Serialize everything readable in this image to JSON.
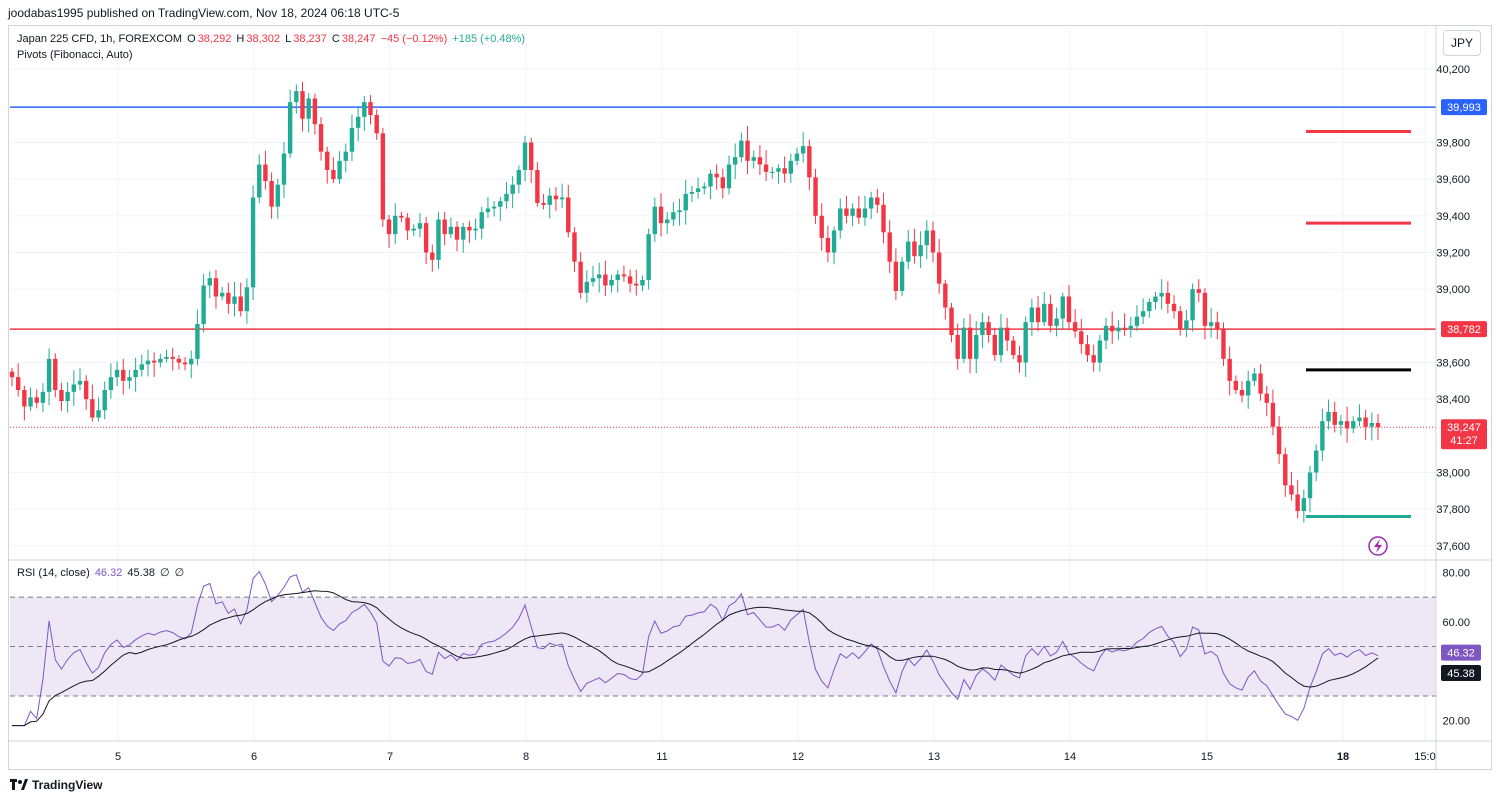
{
  "publisher": {
    "line": "joodabas1995 published on TradingView.com, Nov 18, 2024 06:18 UTC-5"
  },
  "header": {
    "symbol": "Japan 225 CFD, 1h, FOREXCOM",
    "o_label": "O",
    "o_value": "38,292",
    "h_label": "H",
    "h_value": "38,302",
    "l_label": "L",
    "l_value": "38,237",
    "c_label": "C",
    "c_value": "38,247",
    "change": "−45 (−0.12%)",
    "ext_change": "+185 (+0.48%)",
    "indicator": "Pivots (Fibonacci, Auto)",
    "currency": "JPY"
  },
  "rsi_legend": {
    "label": "RSI (14, close)",
    "rsi": "46.32",
    "ma": "45.38",
    "x1": "∅",
    "x2": "∅"
  },
  "footer": {
    "brand": "TradingView"
  },
  "colors": {
    "up": "#22ab94",
    "down": "#f23645",
    "blue_line": "#2962ff",
    "rsi": "#7e57c2",
    "rsi_band": "#ede7f6"
  },
  "chart_data": [
    {
      "type": "candlestick",
      "title": "Japan 225 CFD, 1h, FOREXCOM",
      "x_ticks": [
        "5",
        "6",
        "7",
        "8",
        "11",
        "12",
        "13",
        "14",
        "15",
        "18",
        "15:0"
      ],
      "y_ticks": [
        "40,200",
        "39,800",
        "39,600",
        "39,400",
        "39,200",
        "39,000",
        "38,600",
        "38,400",
        "38,000",
        "37,800",
        "37,600"
      ],
      "ylim": [
        37550,
        40250
      ],
      "horizontal_lines": [
        {
          "price": 39993,
          "label": "39,993",
          "color": "#2962ff"
        },
        {
          "price": 38782,
          "label": "38,782",
          "color": "#f23645"
        }
      ],
      "pivot_levels": [
        {
          "price": 39860,
          "color": "#f23645"
        },
        {
          "price": 39360,
          "color": "#f23645"
        },
        {
          "price": 38560,
          "color": "#000000"
        },
        {
          "price": 37760,
          "color": "#22ab94"
        }
      ],
      "last_price": {
        "value": "38,247",
        "countdown": "41:27"
      },
      "closes": [
        38520,
        38450,
        38360,
        38410,
        38380,
        38440,
        38620,
        38450,
        38390,
        38440,
        38480,
        38500,
        38400,
        38300,
        38340,
        38450,
        38520,
        38560,
        38500,
        38520,
        38560,
        38590,
        38610,
        38600,
        38620,
        38630,
        38620,
        38600,
        38590,
        38620,
        38810,
        39020,
        39060,
        38960,
        38980,
        38920,
        38960,
        38880,
        39010,
        39500,
        39680,
        39590,
        39450,
        39570,
        39740,
        40020,
        40080,
        39930,
        40040,
        39900,
        39750,
        39650,
        39600,
        39700,
        39750,
        39880,
        39940,
        40020,
        39950,
        39850,
        39380,
        39300,
        39400,
        39390,
        39320,
        39330,
        39360,
        39200,
        39160,
        39380,
        39300,
        39340,
        39270,
        39340,
        39320,
        39330,
        39420,
        39440,
        39450,
        39480,
        39520,
        39570,
        39650,
        39800,
        39650,
        39470,
        39460,
        39510,
        39490,
        39500,
        39310,
        39150,
        38980,
        39040,
        39060,
        39080,
        39020,
        39050,
        39080,
        39070,
        39030,
        39020,
        39050,
        39300,
        39450,
        39360,
        39380,
        39420,
        39430,
        39520,
        39530,
        39550,
        39560,
        39630,
        39610,
        39550,
        39680,
        39720,
        39810,
        39700,
        39720,
        39680,
        39640,
        39640,
        39660,
        39630,
        39700,
        39740,
        39780,
        39610,
        39400,
        39280,
        39200,
        39320,
        39440,
        39400,
        39440,
        39390,
        39440,
        39500,
        39460,
        39310,
        39150,
        38990,
        39150,
        39260,
        39180,
        39240,
        39320,
        39200,
        39030,
        38900,
        38750,
        38620,
        38790,
        38620,
        38750,
        38820,
        38750,
        38640,
        38790,
        38720,
        38640,
        38600,
        38820,
        38900,
        38820,
        38920,
        38800,
        38840,
        38960,
        38820,
        38770,
        38700,
        38640,
        38600,
        38720,
        38800,
        38770,
        38790,
        38780,
        38800,
        38850,
        38880,
        38930,
        38960,
        38980,
        38920,
        38880,
        38780,
        38830,
        39000,
        38980,
        38800,
        38820,
        38780,
        38620,
        38500,
        38450,
        38420,
        38500,
        38540,
        38430,
        38380,
        38250,
        38100,
        37930,
        37880,
        37790,
        37860,
        38000,
        38120,
        38280,
        38330,
        38260,
        38280,
        38240,
        38280,
        38300,
        38250,
        38270,
        38247
      ],
      "rsi_series": {
        "name": "RSI (14, close)",
        "last": 46.32
      },
      "rsi_ma": {
        "last": 45.38
      },
      "rsi_ticks": [
        "80.00",
        "60.00",
        "20.00"
      ],
      "rsi_bands": [
        70,
        50,
        30
      ]
    }
  ]
}
